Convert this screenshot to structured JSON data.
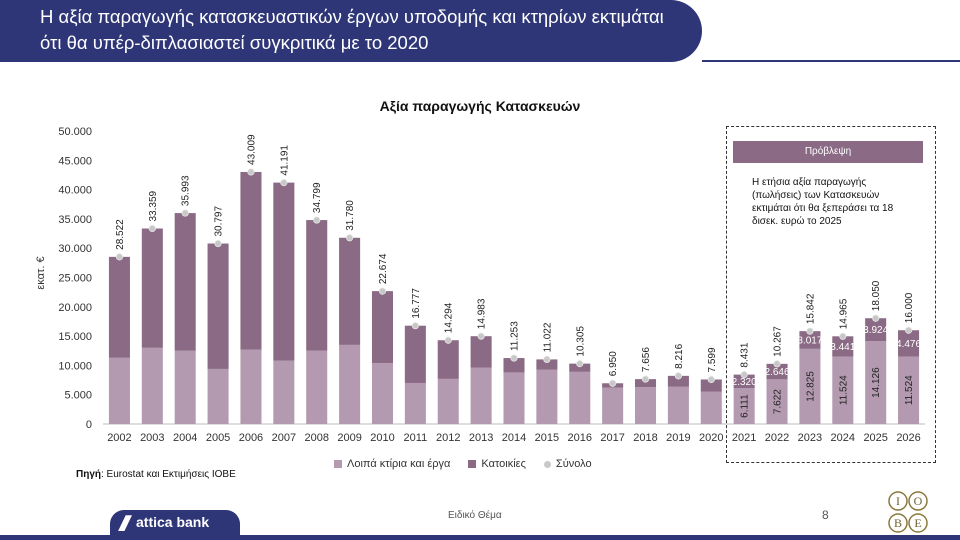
{
  "header": {
    "title": "Η αξία παραγωγής κατασκευαστικών έργων υποδομής και κτηρίων εκτιμάται ότι θα υπέρ-διπλασιαστεί συγκριτικά με το 2020"
  },
  "chart_data": {
    "type": "bar",
    "title": "Αξία παραγωγής Κατασκευών",
    "ylabel": "εκατ. €",
    "xlabel": "",
    "ylim": [
      0,
      50000
    ],
    "y_ticks": [
      "0",
      "5.000",
      "10.000",
      "15.000",
      "20.000",
      "25.000",
      "30.000",
      "35.000",
      "40.000",
      "45.000",
      "50.000"
    ],
    "categories": [
      "2002",
      "2003",
      "2004",
      "2005",
      "2006",
      "2007",
      "2008",
      "2009",
      "2010",
      "2011",
      "2012",
      "2013",
      "2014",
      "2015",
      "2016",
      "2017",
      "2018",
      "2019",
      "2020",
      "2021",
      "2022",
      "2023",
      "2024",
      "2025",
      "2026"
    ],
    "series": [
      {
        "name": "Λοιπά κτίρια και έργα",
        "color": "#b49ab0",
        "values": [
          11300,
          13000,
          12500,
          9400,
          12700,
          10800,
          12500,
          13500,
          10400,
          7000,
          7700,
          9600,
          8800,
          9300,
          8900,
          6200,
          6300,
          6400,
          5500,
          6111,
          7622,
          12825,
          11524,
          14126,
          11524
        ],
        "labels": [
          "",
          "",
          "",
          "",
          "",
          "",
          "",
          "",
          "",
          "",
          "",
          "",
          "",
          "",
          "",
          "",
          "",
          "",
          "",
          "6.111",
          "7.622",
          "12.825",
          "11.524",
          "14.126",
          "11.524"
        ]
      },
      {
        "name": "Κατοικίες",
        "color": "#8a6a84",
        "values": [
          17222,
          20359,
          23493,
          21397,
          30309,
          30391,
          22299,
          18280,
          12274,
          9777,
          6594,
          5383,
          2453,
          1722,
          1405,
          750,
          1356,
          1816,
          2099,
          2320,
          2646,
          3017,
          3441,
          3924,
          4476
        ],
        "labels": [
          "",
          "",
          "",
          "",
          "",
          "",
          "",
          "",
          "",
          "",
          "",
          "",
          "",
          "",
          "",
          "",
          "",
          "",
          "",
          "2.320",
          "2.646",
          "3.017",
          "3.441",
          "3.924",
          "4.476"
        ]
      },
      {
        "name": "Σύνολο",
        "color": "#c8c8c8",
        "values": [
          28522,
          33359,
          35993,
          30797,
          43009,
          41191,
          34799,
          31780,
          22674,
          16777,
          14294,
          14983,
          11253,
          11022,
          10305,
          6950,
          7656,
          8216,
          7599,
          8431,
          10267,
          15842,
          14965,
          18050,
          16000
        ],
        "labels": [
          "28.522",
          "33.359",
          "35.993",
          "30.797",
          "43.009",
          "41.191",
          "34.799",
          "31.780",
          "22.674",
          "16.777",
          "14.294",
          "14.983",
          "11.253",
          "11.022",
          "10.305",
          "6.950",
          "7.656",
          "8.216",
          "7.599",
          "8.431",
          "10.267",
          "15.842",
          "14.965",
          "18.050",
          "16.000"
        ]
      }
    ]
  },
  "forecast": {
    "label": "Πρόβλεψη",
    "note": "Η ετήσια αξία παραγωγής (πωλήσεις) των Κατασκευών εκτιμάται ότι θα ξεπεράσει τα 18 δισεκ. ευρώ το 2025"
  },
  "source": {
    "prefix": "Πηγή",
    "text": ": Eurostat και Εκτιμήσεις ΙΟΒΕ"
  },
  "footer": {
    "brand": "attica bank",
    "section": "Ειδικό Θέμα",
    "page": "8",
    "iobe": [
      "Ι",
      "Ο",
      "Β",
      "Ε"
    ]
  }
}
